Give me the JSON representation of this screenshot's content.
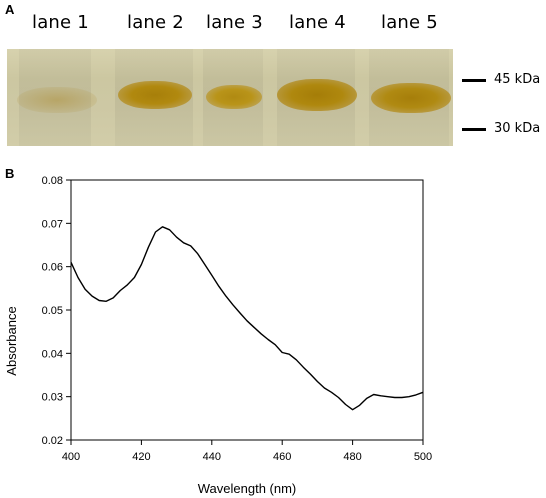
{
  "panel_a": {
    "label": "A",
    "lanes": [
      "lane 1",
      "lane 2",
      "lane 3",
      "lane 4",
      "lane 5"
    ],
    "markers": [
      "45 kDa",
      "30 kDa"
    ]
  },
  "panel_b": {
    "label": "B"
  },
  "chart_data": {
    "type": "line",
    "title": "",
    "xlabel": "Wavelength (nm)",
    "ylabel": "Absorbance",
    "xlim": [
      400,
      500
    ],
    "ylim": [
      0.02,
      0.08
    ],
    "xticks": [
      "400",
      "420",
      "440",
      "460",
      "480",
      "500"
    ],
    "yticks": [
      "0.02",
      "0.03",
      "0.04",
      "0.05",
      "0.06",
      "0.07",
      "0.08"
    ],
    "grid": false,
    "legend": "none",
    "series": [
      {
        "x": [
          400,
          402,
          404,
          406,
          408,
          410,
          412,
          414,
          416,
          418,
          420,
          422,
          424,
          426,
          428,
          430,
          432,
          434,
          436,
          438,
          440,
          442,
          444,
          446,
          448,
          450,
          452,
          454,
          456,
          458,
          460,
          462,
          464,
          466,
          468,
          470,
          472,
          474,
          476,
          478,
          480,
          482,
          484,
          486,
          488,
          490,
          492,
          494,
          496,
          498,
          500
        ],
        "y": [
          0.061,
          0.0575,
          0.0548,
          0.0532,
          0.0522,
          0.052,
          0.0528,
          0.0545,
          0.0558,
          0.0575,
          0.0605,
          0.0645,
          0.068,
          0.0692,
          0.0685,
          0.0668,
          0.0655,
          0.0648,
          0.063,
          0.0605,
          0.058,
          0.0555,
          0.0532,
          0.0512,
          0.0493,
          0.0475,
          0.046,
          0.0445,
          0.0432,
          0.042,
          0.0402,
          0.0398,
          0.0385,
          0.0368,
          0.0352,
          0.0335,
          0.032,
          0.031,
          0.0298,
          0.0282,
          0.027,
          0.028,
          0.0296,
          0.0305,
          0.0302,
          0.03,
          0.0298,
          0.0298,
          0.03,
          0.0304,
          0.031
        ]
      }
    ]
  },
  "colors": {
    "gel_background": "#cfcaa6",
    "band": "#b08a18",
    "line": "#000000"
  }
}
